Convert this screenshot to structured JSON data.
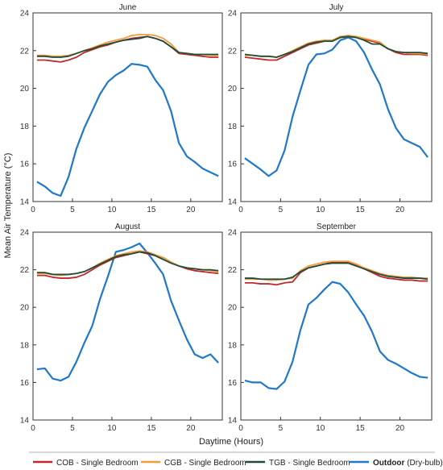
{
  "chart_data": {
    "type": "line",
    "ylabel": "Mean Air Temperature (°C)",
    "xlabel": "Daytime (Hours)",
    "xlim": [
      0,
      24
    ],
    "ylim": [
      14,
      24
    ],
    "xticks": [
      0,
      5,
      10,
      15,
      20
    ],
    "yticks": [
      14,
      16,
      18,
      20,
      22,
      24
    ],
    "grid": false,
    "legend_position": "bottom",
    "series_meta": [
      {
        "key": "cob",
        "name": "COB - Single Bedroom",
        "color": "#c0282d"
      },
      {
        "key": "cgb",
        "name": "CGB - Single Bedroom",
        "color": "#f39c3a"
      },
      {
        "key": "tgb",
        "name": "TGB - Single Bedroom",
        "color": "#1e4d3a"
      },
      {
        "key": "out",
        "name_bold": "Outdoor",
        "name_rest": " (Dry-bulb)",
        "color": "#1f78c8"
      }
    ],
    "panels": [
      {
        "title": "June",
        "x": [
          0.5,
          1.5,
          2.5,
          3.5,
          4.5,
          5.5,
          6.5,
          7.5,
          8.5,
          9.5,
          10.5,
          11.5,
          12.5,
          13.5,
          14.5,
          15.5,
          16.5,
          17.5,
          18.5,
          19.5,
          20.5,
          21.5,
          22.5,
          23.5
        ],
        "series": {
          "cob": [
            21.5,
            21.5,
            21.45,
            21.4,
            21.5,
            21.65,
            21.9,
            22.05,
            22.2,
            22.3,
            22.45,
            22.55,
            22.65,
            22.7,
            22.75,
            22.65,
            22.5,
            22.2,
            21.85,
            21.8,
            21.75,
            21.7,
            21.65,
            21.65
          ],
          "cgb": [
            21.75,
            21.75,
            21.7,
            21.7,
            21.75,
            21.85,
            22.0,
            22.15,
            22.3,
            22.45,
            22.55,
            22.65,
            22.8,
            22.85,
            22.85,
            22.8,
            22.65,
            22.35,
            21.9,
            21.85,
            21.8,
            21.8,
            21.75,
            21.75
          ],
          "tgb": [
            21.7,
            21.7,
            21.65,
            21.65,
            21.7,
            21.85,
            22.0,
            22.1,
            22.25,
            22.35,
            22.45,
            22.55,
            22.6,
            22.65,
            22.75,
            22.65,
            22.5,
            22.2,
            21.9,
            21.85,
            21.8,
            21.8,
            21.8,
            21.8
          ],
          "out": [
            15.05,
            14.8,
            14.45,
            14.3,
            15.3,
            16.8,
            17.9,
            18.8,
            19.7,
            20.35,
            20.7,
            20.95,
            21.3,
            21.25,
            21.15,
            20.45,
            19.9,
            18.8,
            17.1,
            16.4,
            16.1,
            15.75,
            15.55,
            15.35
          ]
        }
      },
      {
        "title": "July",
        "x": [
          0.5,
          1.5,
          2.5,
          3.5,
          4.5,
          5.5,
          6.5,
          7.5,
          8.5,
          9.5,
          10.5,
          11.5,
          12.5,
          13.5,
          14.5,
          15.5,
          16.5,
          17.5,
          18.5,
          19.5,
          20.5,
          21.5,
          22.5,
          23.5
        ],
        "series": {
          "cob": [
            21.65,
            21.6,
            21.55,
            21.5,
            21.5,
            21.7,
            21.9,
            22.1,
            22.3,
            22.4,
            22.5,
            22.5,
            22.7,
            22.75,
            22.7,
            22.6,
            22.5,
            22.4,
            22.1,
            21.9,
            21.8,
            21.8,
            21.8,
            21.75
          ],
          "cgb": [
            21.75,
            21.75,
            21.7,
            21.7,
            21.65,
            21.8,
            22.0,
            22.2,
            22.4,
            22.5,
            22.55,
            22.55,
            22.75,
            22.8,
            22.75,
            22.65,
            22.55,
            22.45,
            22.1,
            21.95,
            21.9,
            21.85,
            21.85,
            21.8
          ],
          "tgb": [
            21.8,
            21.75,
            21.7,
            21.7,
            21.65,
            21.8,
            21.95,
            22.15,
            22.35,
            22.45,
            22.5,
            22.5,
            22.7,
            22.75,
            22.7,
            22.55,
            22.35,
            22.35,
            22.1,
            21.95,
            21.9,
            21.9,
            21.9,
            21.85
          ],
          "out": [
            16.3,
            16.0,
            15.7,
            15.35,
            15.65,
            16.7,
            18.5,
            19.9,
            21.25,
            21.8,
            21.85,
            22.05,
            22.55,
            22.7,
            22.5,
            21.9,
            21.0,
            20.2,
            18.9,
            17.9,
            17.3,
            17.1,
            16.9,
            16.35
          ]
        }
      },
      {
        "title": "August",
        "x": [
          0.5,
          1.5,
          2.5,
          3.5,
          4.5,
          5.5,
          6.5,
          7.5,
          8.5,
          9.5,
          10.5,
          11.5,
          12.5,
          13.5,
          14.5,
          15.5,
          16.5,
          17.5,
          18.5,
          19.5,
          20.5,
          21.5,
          22.5,
          23.5
        ],
        "series": {
          "cob": [
            21.7,
            21.7,
            21.6,
            21.55,
            21.55,
            21.6,
            21.75,
            22.0,
            22.25,
            22.45,
            22.65,
            22.75,
            22.85,
            22.95,
            22.85,
            22.75,
            22.65,
            22.4,
            22.2,
            22.05,
            21.95,
            21.9,
            21.85,
            21.8
          ],
          "cgb": [
            21.8,
            21.8,
            21.75,
            21.7,
            21.75,
            21.8,
            21.9,
            22.1,
            22.35,
            22.55,
            22.75,
            22.85,
            22.95,
            23.0,
            22.95,
            22.8,
            22.65,
            22.4,
            22.2,
            22.1,
            22.05,
            22.0,
            21.95,
            21.9
          ],
          "tgb": [
            21.85,
            21.85,
            21.75,
            21.75,
            21.75,
            21.8,
            21.9,
            22.1,
            22.3,
            22.5,
            22.7,
            22.8,
            22.85,
            22.95,
            22.9,
            22.75,
            22.55,
            22.35,
            22.2,
            22.1,
            22.05,
            22.0,
            22.0,
            21.95
          ],
          "out": [
            16.7,
            16.75,
            16.2,
            16.1,
            16.3,
            17.1,
            18.1,
            19.0,
            20.45,
            21.65,
            22.95,
            23.05,
            23.2,
            23.4,
            22.9,
            22.35,
            21.75,
            20.35,
            19.3,
            18.3,
            17.5,
            17.3,
            17.5,
            17.05
          ]
        }
      },
      {
        "title": "September",
        "x": [
          0.5,
          1.5,
          2.5,
          3.5,
          4.5,
          5.5,
          6.5,
          7.5,
          8.5,
          9.5,
          10.5,
          11.5,
          12.5,
          13.5,
          14.5,
          15.5,
          16.5,
          17.5,
          18.5,
          19.5,
          20.5,
          21.5,
          22.5,
          23.5
        ],
        "series": {
          "cob": [
            21.3,
            21.3,
            21.25,
            21.25,
            21.2,
            21.3,
            21.35,
            21.85,
            22.1,
            22.2,
            22.3,
            22.4,
            22.4,
            22.4,
            22.25,
            22.05,
            21.85,
            21.65,
            21.55,
            21.5,
            21.45,
            21.45,
            21.4,
            21.4
          ],
          "cgb": [
            21.5,
            21.5,
            21.5,
            21.45,
            21.45,
            21.5,
            21.55,
            21.95,
            22.2,
            22.3,
            22.4,
            22.45,
            22.45,
            22.45,
            22.3,
            22.1,
            21.95,
            21.8,
            21.7,
            21.65,
            21.6,
            21.6,
            21.55,
            21.55
          ],
          "tgb": [
            21.55,
            21.55,
            21.5,
            21.5,
            21.5,
            21.5,
            21.6,
            21.9,
            22.1,
            22.2,
            22.3,
            22.35,
            22.35,
            22.35,
            22.2,
            22.05,
            21.9,
            21.75,
            21.65,
            21.6,
            21.55,
            21.55,
            21.55,
            21.5
          ],
          "out": [
            16.1,
            16.0,
            16.0,
            15.7,
            15.65,
            16.05,
            17.1,
            18.8,
            20.15,
            20.5,
            20.95,
            21.35,
            21.25,
            20.8,
            20.15,
            19.55,
            18.7,
            17.65,
            17.2,
            17.0,
            16.75,
            16.5,
            16.3,
            16.25
          ]
        }
      }
    ]
  }
}
